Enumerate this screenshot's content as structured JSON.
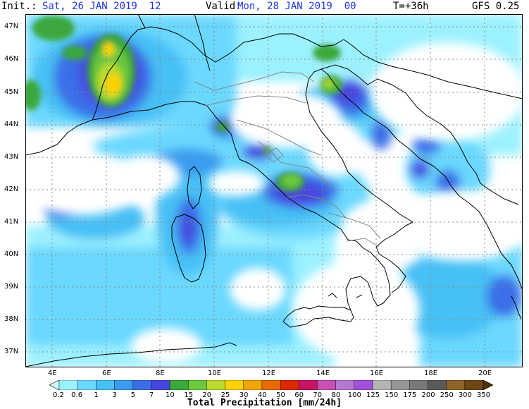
{
  "header": {
    "init_label": "Init.:",
    "init_value": "Sat, 26 JAN 2019  12",
    "valid_label": "Valid:",
    "valid_value": "Mon, 28 JAN 2019  00",
    "lead": "T=+36h",
    "model": "GFS 0.25"
  },
  "axes": {
    "lat_labels": [
      "47N",
      "46N",
      "45N",
      "44N",
      "43N",
      "42N",
      "41N",
      "40N",
      "39N",
      "38N",
      "37N"
    ],
    "lon_labels": [
      "4E",
      "6E",
      "8E",
      "10E",
      "12E",
      "14E",
      "16E",
      "18E",
      "20E"
    ]
  },
  "colorbar": {
    "title": "Total Precipitation [mm/24h]",
    "ticks": [
      "0.2",
      "0.6",
      "1",
      "3",
      "5",
      "7",
      "10",
      "15",
      "20",
      "25",
      "30",
      "40",
      "50",
      "60",
      "70",
      "80",
      "100",
      "125",
      "150",
      "175",
      "200",
      "250",
      "300",
      "350"
    ],
    "colors": [
      "#cdffff",
      "#9cf1ff",
      "#6ad8ff",
      "#47c0f5",
      "#3a9cf0",
      "#3a6ee8",
      "#4646e0",
      "#3aa83a",
      "#6cc83c",
      "#bada2c",
      "#fad200",
      "#f0a500",
      "#ea6a00",
      "#dc2800",
      "#c81464",
      "#c850b4",
      "#b478d2",
      "#a050dc",
      "#b4b4b4",
      "#969696",
      "#787878",
      "#5a5a5a",
      "#8c6428",
      "#6e4614",
      "#503000"
    ]
  }
}
